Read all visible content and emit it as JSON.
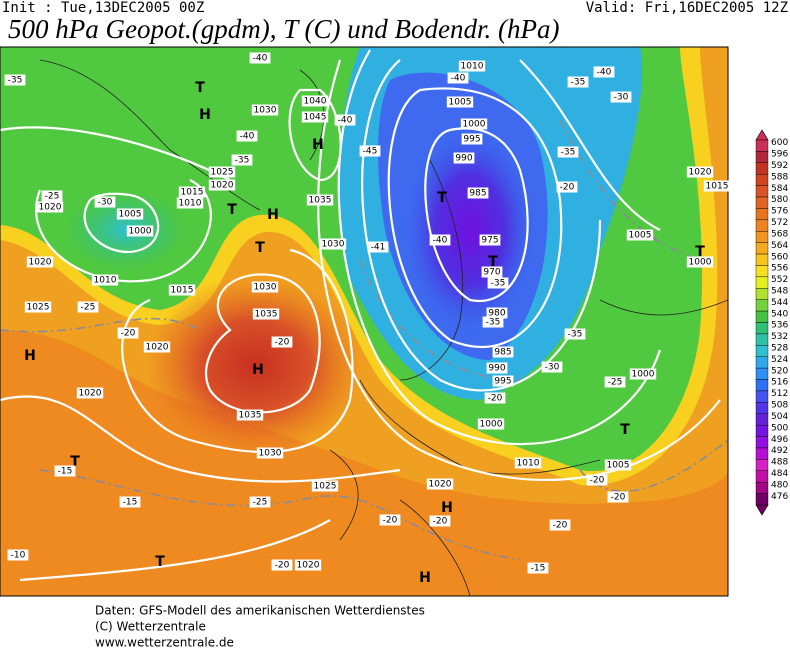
{
  "header": {
    "init": "Init : Tue,13DEC2005 00Z",
    "valid": "Valid: Fri,16DEC2005 12Z",
    "title": "500 hPa Geopot.(gpdm), T (C) und Bodendr. (hPa)"
  },
  "colorbar": {
    "levels": [
      "600",
      "596",
      "592",
      "588",
      "584",
      "580",
      "576",
      "572",
      "568",
      "564",
      "560",
      "556",
      "552",
      "548",
      "544",
      "540",
      "536",
      "532",
      "528",
      "524",
      "520",
      "516",
      "512",
      "508",
      "504",
      "500",
      "496",
      "492",
      "488",
      "484",
      "480",
      "476"
    ],
    "colors": [
      "#c83058",
      "#b0283c",
      "#c03424",
      "#d04422",
      "#d85426",
      "#e06422",
      "#e87420",
      "#ee8420",
      "#f29420",
      "#f6a81e",
      "#f8c41e",
      "#f8e020",
      "#e4f020",
      "#b0e030",
      "#74d040",
      "#44c044",
      "#30c074",
      "#30c0a4",
      "#30c0cc",
      "#30a8ec",
      "#3090f4",
      "#3070f4",
      "#4454f0",
      "#5434e4",
      "#6422d4",
      "#7414e0",
      "#9410e0",
      "#b410d4",
      "#d420c4",
      "#c010a4",
      "#a00884",
      "#700064"
    ]
  },
  "map_labels": [
    "H",
    "T",
    "1030",
    "1040",
    "1045",
    "H",
    "-40",
    "-35",
    "1025",
    "1020",
    "1015",
    "1010",
    "1005",
    "-30",
    "1000",
    "1020",
    "-25",
    "1020",
    "1010",
    "1015",
    "-25",
    "1025",
    "-20",
    "1020",
    "H",
    "1035",
    "T",
    "H",
    "1030",
    "T",
    "1030",
    "1035",
    "-20",
    "H",
    "1035",
    "1020",
    "1030",
    "1025",
    "T",
    "-15",
    "-15",
    "-25",
    "T",
    "-20",
    "1020",
    "-10",
    "-40",
    "-45",
    "-40",
    "1010",
    "-40",
    "1005",
    "1000",
    "995",
    "990",
    "T",
    "985",
    "-40",
    "975",
    "T",
    "970",
    "-35",
    "-41",
    "980",
    "-35",
    "985",
    "990",
    "995",
    "-20",
    "1000",
    "-35",
    "-30",
    "-25",
    "1000",
    "T",
    "1010",
    "1005",
    "-20",
    "-20",
    "H",
    "1020",
    "-20",
    "-20",
    "-20",
    "-15",
    "H",
    "T",
    "1000",
    "1005",
    "1020",
    "1015",
    "-40",
    "-35",
    "-30",
    "-35",
    "-20",
    "-35"
  ],
  "footer": [
    "Daten: GFS-Modell des amerikanischen Wetterdienstes",
    "(C) Wetterzentrale",
    "www.wetterzentrale.de"
  ]
}
